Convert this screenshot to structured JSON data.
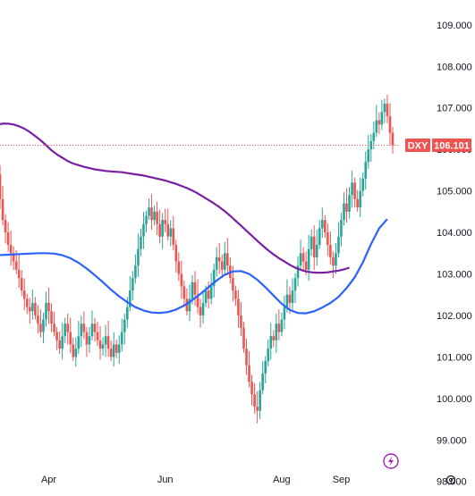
{
  "chart_data": {
    "type": "candlestick",
    "symbol": "DXY",
    "last_price": "106.101",
    "ylim": [
      97.8,
      109.6
    ],
    "y_ticks": [
      "109.000",
      "108.000",
      "107.000",
      "106.000",
      "105.000",
      "104.000",
      "103.000",
      "102.000",
      "101.000",
      "100.000",
      "99.000",
      "98.000"
    ],
    "x_labels": [
      "Apr",
      "Jun",
      "Aug",
      "Sep"
    ],
    "colors": {
      "up": "#26a69a",
      "down": "#ef5350",
      "ma_long": "#7b1fa2",
      "ma_short": "#2962ff",
      "price_line": "#ef5350",
      "lightning": "#9c27b0"
    },
    "grid": false,
    "x": [
      "Mar 6",
      "Mar 7",
      "Mar 8",
      "Mar 11",
      "Mar 12",
      "Mar 13",
      "Mar 14",
      "Mar 15",
      "Mar 18",
      "Mar 19",
      "Mar 20",
      "Mar 21",
      "Mar 22",
      "Mar 25",
      "Mar 26",
      "Mar 27",
      "Mar 28",
      "Apr 1",
      "Apr 2",
      "Apr 3",
      "Apr 4",
      "Apr 5",
      "Apr 8",
      "Apr 9",
      "Apr 10",
      "Apr 11",
      "Apr 12",
      "Apr 15",
      "Apr 16",
      "Apr 17",
      "Apr 18",
      "Apr 19",
      "Apr 22",
      "Apr 23",
      "Apr 24",
      "Apr 25",
      "Apr 26",
      "Apr 29",
      "Apr 30",
      "May 1",
      "May 2",
      "May 3",
      "May 6",
      "May 7",
      "May 8",
      "May 9",
      "May 10",
      "May 13",
      "May 14",
      "May 15",
      "May 16",
      "May 17",
      "May 20",
      "May 21",
      "May 22",
      "May 23",
      "May 24",
      "May 27",
      "May 28",
      "May 29",
      "May 30",
      "May 31",
      "Jun 3",
      "Jun 4",
      "Jun 5",
      "Jun 6",
      "Jun 7",
      "Jun 10",
      "Jun 11",
      "Jun 12",
      "Jun 13",
      "Jun 14",
      "Jun 17",
      "Jun 18",
      "Jun 19",
      "Jun 20",
      "Jun 21",
      "Jun 24",
      "Jun 25",
      "Jun 26",
      "Jun 27",
      "Jun 28",
      "Jul 1",
      "Jul 2",
      "Jul 3",
      "Jul 4",
      "Jul 5",
      "Jul 8",
      "Jul 9",
      "Jul 10",
      "Jul 11",
      "Jul 12",
      "Jul 15",
      "Jul 16",
      "Jul 17",
      "Jul 18",
      "Jul 19",
      "Jul 22",
      "Jul 23",
      "Jul 24",
      "Jul 25",
      "Jul 26",
      "Jul 29",
      "Jul 30",
      "Jul 31",
      "Aug 1",
      "Aug 2",
      "Aug 5",
      "Aug 6",
      "Aug 7",
      "Aug 8",
      "Aug 9",
      "Aug 12",
      "Aug 13",
      "Aug 14",
      "Aug 15",
      "Aug 16",
      "Aug 19",
      "Aug 20",
      "Aug 21",
      "Aug 22",
      "Aug 23",
      "Aug 26",
      "Aug 27",
      "Aug 28",
      "Aug 29",
      "Aug 30",
      "Sep 2",
      "Sep 3",
      "Sep 4",
      "Sep 5",
      "Sep 6",
      "Sep 9",
      "Sep 10",
      "Sep 11",
      "Sep 12",
      "Sep 13",
      "Sep 16",
      "Sep 17",
      "Sep 18",
      "Sep 19",
      "Sep 20",
      "Sep 23",
      "Sep 24",
      "Sep 25",
      "Sep 26",
      "Sep 27"
    ],
    "close": [
      105.4,
      104.8,
      104.3,
      104.0,
      103.7,
      103.5,
      103.3,
      103.1,
      102.9,
      102.6,
      102.4,
      102.2,
      102.1,
      102.3,
      102.0,
      101.8,
      101.6,
      101.9,
      102.3,
      102.1,
      101.8,
      101.6,
      101.4,
      101.2,
      101.5,
      101.8,
      101.6,
      101.3,
      101.0,
      101.2,
      101.5,
      101.8,
      101.6,
      101.3,
      101.5,
      101.8,
      101.6,
      101.4,
      101.2,
      101.3,
      101.5,
      101.2,
      101.0,
      101.3,
      101.1,
      101.3,
      101.6,
      101.9,
      102.2,
      102.6,
      102.9,
      103.2,
      103.6,
      103.9,
      104.2,
      104.4,
      104.6,
      104.3,
      104.5,
      104.2,
      103.9,
      104.3,
      104.2,
      103.9,
      104.1,
      103.7,
      103.3,
      103.0,
      102.7,
      102.4,
      102.1,
      102.4,
      102.8,
      102.5,
      102.2,
      102.0,
      102.3,
      102.6,
      102.4,
      102.7,
      103.1,
      103.4,
      103.3,
      103.1,
      103.5,
      103.2,
      102.9,
      102.6,
      102.4,
      102.0,
      101.7,
      101.2,
      100.8,
      100.4,
      100.1,
      99.8,
      99.7,
      100.2,
      100.6,
      100.9,
      101.2,
      101.5,
      101.4,
      101.8,
      101.6,
      101.9,
      102.2,
      102.5,
      102.3,
      102.6,
      102.9,
      103.2,
      103.5,
      103.3,
      103.1,
      103.6,
      103.9,
      103.4,
      103.7,
      104.1,
      104.3,
      104.0,
      103.7,
      103.4,
      103.2,
      103.5,
      103.9,
      104.3,
      104.7,
      104.5,
      104.9,
      105.2,
      104.8,
      104.6,
      105.0,
      105.3,
      105.7,
      106.0,
      106.2,
      106.4,
      106.7,
      106.6,
      106.9,
      107.1,
      106.8,
      106.4,
      106.1
    ],
    "ma_long": [
      106.6,
      106.62,
      106.62,
      106.6,
      106.56,
      106.5,
      106.42,
      106.32,
      106.22,
      106.1,
      105.98,
      105.88,
      105.8,
      105.72,
      105.66,
      105.62,
      105.58,
      105.55,
      105.52,
      105.5,
      105.48,
      105.47,
      105.46,
      105.45,
      105.43,
      105.41,
      105.39,
      105.37,
      105.34,
      105.31,
      105.28,
      105.25,
      105.21,
      105.17,
      105.12,
      105.07,
      105.01,
      104.94,
      104.86,
      104.78,
      104.7,
      104.61,
      104.51,
      104.4,
      104.28,
      104.16,
      104.04,
      103.92,
      103.8,
      103.68,
      103.57,
      103.47,
      103.38,
      103.3,
      103.22,
      103.15,
      103.1,
      103.06,
      103.04,
      103.03,
      103.03,
      103.04,
      103.06,
      103.08,
      103.11,
      103.15
    ],
    "ma_long_x": [
      0,
      2,
      4,
      6,
      8,
      10,
      12,
      14,
      16,
      18,
      20,
      22,
      24,
      26,
      28,
      30,
      32,
      34,
      36,
      38,
      40,
      42,
      44,
      46,
      48,
      50,
      52,
      54,
      56,
      58,
      60,
      62,
      64,
      66,
      68,
      70,
      72,
      74,
      76,
      78,
      80,
      82,
      84,
      86,
      88,
      90,
      92,
      94,
      96,
      98,
      100,
      102,
      104,
      106,
      108,
      110,
      112,
      114,
      116,
      118,
      120,
      122,
      124,
      126,
      128,
      130
    ],
    "ma_short": [
      103.45,
      103.46,
      103.47,
      103.48,
      103.49,
      103.5,
      103.5,
      103.49,
      103.45,
      103.38,
      103.27,
      103.13,
      102.97,
      102.8,
      102.62,
      102.46,
      102.32,
      102.2,
      102.12,
      102.07,
      102.06,
      102.08,
      102.14,
      102.24,
      102.37,
      102.52,
      102.68,
      102.84,
      102.98,
      103.06,
      103.07,
      103.0,
      102.86,
      102.68,
      102.48,
      102.28,
      102.13,
      102.06,
      102.05,
      102.1,
      102.19,
      102.3,
      102.45,
      102.66,
      102.92,
      103.28,
      103.72,
      104.1,
      104.32
    ],
    "ma_short_x": [
      0,
      3,
      6,
      9,
      12,
      15,
      18,
      21,
      24,
      27,
      30,
      33,
      36,
      39,
      42,
      45,
      48,
      51,
      54,
      57,
      60,
      63,
      66,
      69,
      72,
      75,
      78,
      81,
      84,
      87,
      90,
      93,
      96,
      99,
      102,
      105,
      108,
      111,
      114,
      117,
      120,
      123,
      126,
      129,
      132,
      135,
      138,
      141,
      144
    ]
  }
}
